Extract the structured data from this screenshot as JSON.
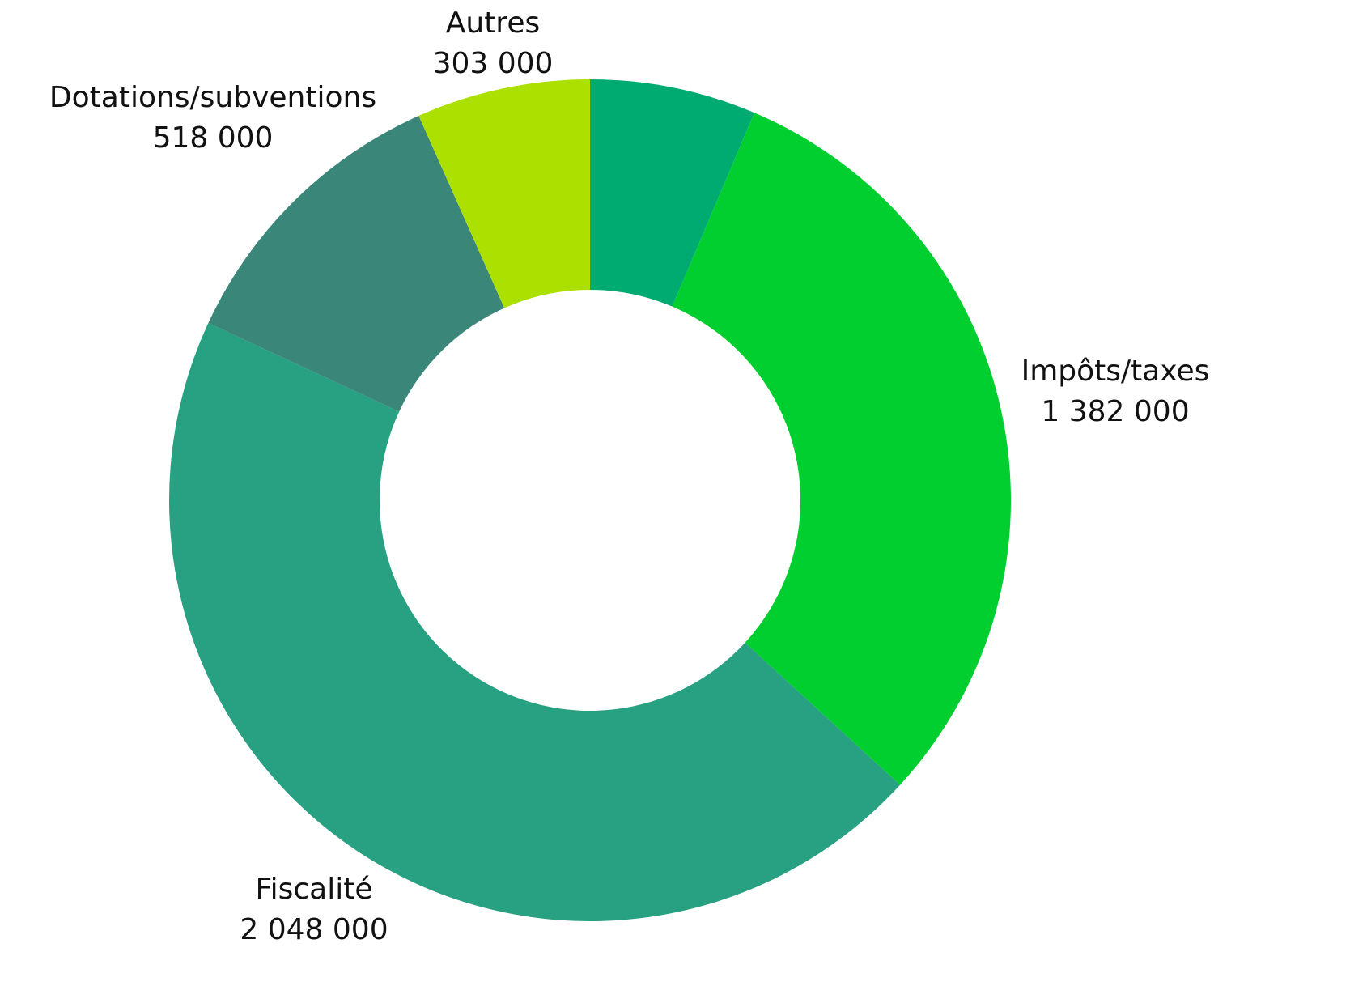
{
  "chart_data": {
    "type": "donut",
    "categories": [
      null,
      "Impôts/taxes",
      "Fiscalité",
      "Dotations/subventions",
      "Autres"
    ],
    "values": [
      290000,
      1382000,
      2048000,
      518000,
      303000
    ],
    "value_labels": [
      null,
      "1 382 000",
      "2 048 000",
      "518 000",
      "303 000"
    ],
    "colors": [
      "#00ab72",
      "#00cf2f",
      "#28a082",
      "#3a8679",
      "#abe000"
    ]
  }
}
